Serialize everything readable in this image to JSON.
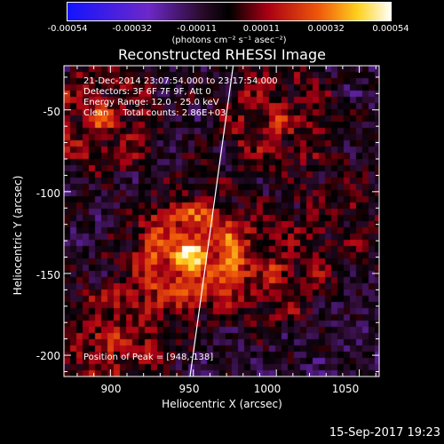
{
  "colorbar": {
    "tick_labels": [
      "-0.00054",
      "-0.00032",
      "-0.00011",
      "0.00011",
      "0.00032",
      "0.00054"
    ],
    "units": "(photons cm⁻² s⁻¹ asec⁻²)",
    "range": [
      -0.00054,
      0.00054
    ]
  },
  "chart_data": {
    "type": "heatmap",
    "title": "Reconstructed RHESSI Image",
    "xlabel": "Heliocentric X (arcsec)",
    "ylabel": "Heliocentric Y (arcsec)",
    "xlim": [
      872,
      1062
    ],
    "ylim": [
      -213,
      -23
    ],
    "x_ticks": [
      900,
      950,
      1000,
      1050
    ],
    "y_ticks": [
      -50,
      -100,
      -150,
      -200
    ],
    "annotations": [
      "21-Dec-2014 23:07:54.000 to 23:17:54.000",
      "Detectors: 3F 6F 7F 9F, Att 0",
      "Energy Range: 12.0 - 25.0 keV",
      "Clean     Total counts: 2.86E+03"
    ],
    "peak_label": "Position of Peak = [948,-138]",
    "peak_position": [
      948,
      -138
    ],
    "limb_line": [
      [
        948,
        -213
      ],
      [
        974,
        -23
      ]
    ],
    "colormap": "blue-purple-black-red-yellow-white",
    "sources": [
      {
        "x": 948,
        "y": -138,
        "intensity": 1.0
      },
      {
        "x": 895,
        "y": -55,
        "intensity": 0.55
      },
      {
        "x": 1000,
        "y": -55,
        "intensity": 0.5
      },
      {
        "x": 900,
        "y": -190,
        "intensity": 0.55
      },
      {
        "x": 1000,
        "y": -150,
        "intensity": 0.4
      },
      {
        "x": 1045,
        "y": -110,
        "intensity": 0.25
      }
    ]
  },
  "footer": {
    "date": "15-Sep-2017 19:23"
  }
}
